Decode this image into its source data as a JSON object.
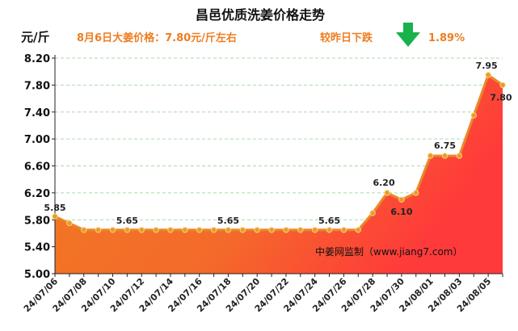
{
  "page": {
    "title": "昌邑优质洗姜价格走势",
    "unit": "元/斤",
    "price_note": "8月6日大姜价格：7.80元/斤左右",
    "change_label": "较昨日下跌",
    "change_value": "1.89%",
    "change_direction": "down",
    "change_arrow_color": "#19b24a",
    "source": "中姜网监制（www.jiang7.com）"
  },
  "chart_data": {
    "type": "area",
    "title": "昌邑优质洗姜价格走势",
    "ylabel": "元/斤",
    "ylim": [
      5.0,
      8.2
    ],
    "yticks": [
      "5.00",
      "5.40",
      "5.80",
      "6.20",
      "6.60",
      "7.00",
      "7.40",
      "7.80",
      "8.20"
    ],
    "grid": true,
    "x": [
      "24/07/06",
      "24/07/07",
      "24/07/08",
      "24/07/09",
      "24/07/10",
      "24/07/11",
      "24/07/12",
      "24/07/13",
      "24/07/14",
      "24/07/15",
      "24/07/16",
      "24/07/17",
      "24/07/18",
      "24/07/19",
      "24/07/20",
      "24/07/21",
      "24/07/22",
      "24/07/23",
      "24/07/24",
      "24/07/25",
      "24/07/26",
      "24/07/27",
      "24/07/28",
      "24/07/29",
      "24/07/30",
      "24/07/31",
      "24/08/01",
      "24/08/02",
      "24/08/03",
      "24/08/04",
      "24/08/05",
      "24/08/06"
    ],
    "xtick_labels": [
      "24/07/06",
      "24/07/08",
      "24/07/10",
      "24/07/12",
      "24/07/14",
      "24/07/16",
      "24/07/18",
      "24/07/20",
      "24/07/22",
      "24/07/24",
      "24/07/26",
      "24/07/28",
      "24/07/30",
      "24/08/01",
      "24/08/03",
      "24/08/05"
    ],
    "values": [
      5.85,
      5.75,
      5.65,
      5.65,
      5.65,
      5.65,
      5.65,
      5.65,
      5.65,
      5.65,
      5.65,
      5.65,
      5.65,
      5.65,
      5.65,
      5.65,
      5.65,
      5.65,
      5.65,
      5.65,
      5.65,
      5.65,
      5.9,
      6.2,
      6.1,
      6.2,
      6.75,
      6.75,
      6.75,
      7.35,
      7.95,
      7.8
    ],
    "data_labels": [
      {
        "index": 0,
        "text": "5.85"
      },
      {
        "index": 5,
        "text": "5.65"
      },
      {
        "index": 12,
        "text": "5.65"
      },
      {
        "index": 19,
        "text": "5.65"
      },
      {
        "index": 23,
        "text": "6.20"
      },
      {
        "index": 24,
        "text": "6.10"
      },
      {
        "index": 27,
        "text": "6.75"
      },
      {
        "index": 30,
        "text": "7.95"
      },
      {
        "index": 31,
        "text": "7.80"
      }
    ],
    "colors": {
      "line": "#e88a2a",
      "fill_top": "#ff3a3a",
      "fill_bottom": "#f07a22",
      "marker": "#e89a30",
      "grid": "#a6dca6",
      "axis": "#222222"
    }
  }
}
